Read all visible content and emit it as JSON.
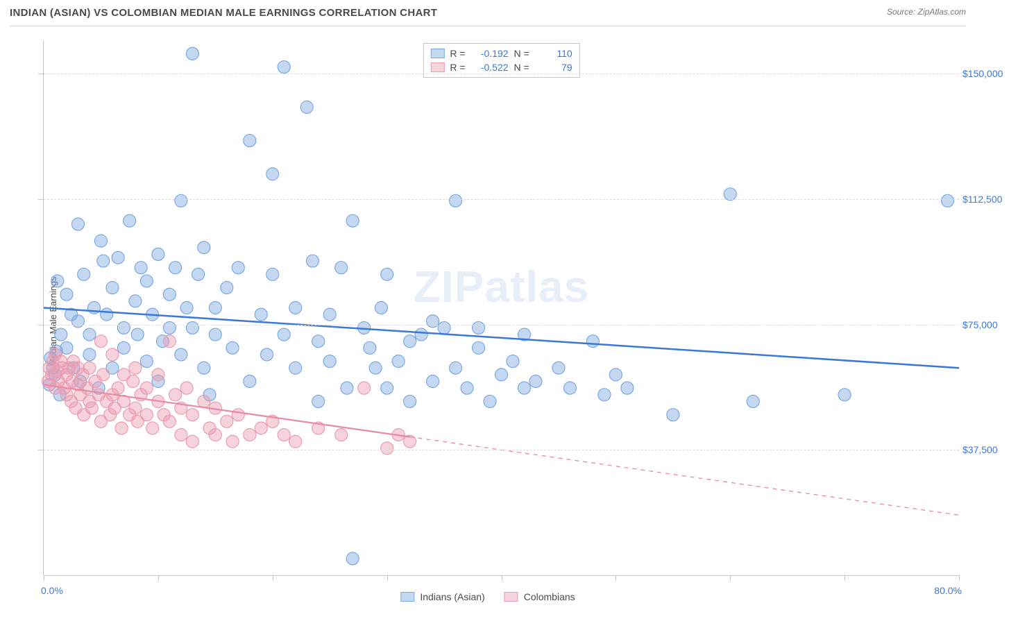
{
  "title": "INDIAN (ASIAN) VS COLOMBIAN MEDIAN MALE EARNINGS CORRELATION CHART",
  "source": "Source: ZipAtlas.com",
  "watermark": "ZIPatlas",
  "ylabel": "Median Male Earnings",
  "chart": {
    "type": "scatter",
    "background_color": "#ffffff",
    "grid_color": "#dcdcdc",
    "axis_color": "#c6c6c6",
    "text_color": "#4a4a4a",
    "value_color": "#3b78d8",
    "x": {
      "min": 0.0,
      "max": 80.0,
      "min_label": "0.0%",
      "max_label": "80.0%",
      "tick_step": 10.0
    },
    "y": {
      "min": 0,
      "max": 160000,
      "gridlines": [
        37500,
        75000,
        112500,
        150000
      ],
      "tick_labels": [
        "$37,500",
        "$75,000",
        "$112,500",
        "$150,000"
      ]
    },
    "series": [
      {
        "name": "Indians (Asian)",
        "marker_color_fill": "rgba(124,169,227,0.45)",
        "marker_color_stroke": "#7ca9e3",
        "marker_radius": 9,
        "line_color": "#3b78d8",
        "line_width": 2.5,
        "R": -0.192,
        "N": 110,
        "trend": {
          "x1": 0,
          "y1": 80000,
          "x2": 80,
          "y2": 62000,
          "solid_until_x": 80
        },
        "points": [
          [
            0.5,
            57000
          ],
          [
            0.6,
            65000
          ],
          [
            0.8,
            62000
          ],
          [
            1.0,
            60000
          ],
          [
            1.1,
            67000
          ],
          [
            1.2,
            88000
          ],
          [
            1.4,
            54000
          ],
          [
            1.5,
            72000
          ],
          [
            2.0,
            68000
          ],
          [
            2.0,
            84000
          ],
          [
            2.4,
            78000
          ],
          [
            2.6,
            62000
          ],
          [
            3.0,
            76000
          ],
          [
            3.0,
            105000
          ],
          [
            3.2,
            58000
          ],
          [
            3.5,
            90000
          ],
          [
            4.0,
            72000
          ],
          [
            4.0,
            66000
          ],
          [
            4.4,
            80000
          ],
          [
            4.8,
            56000
          ],
          [
            5.0,
            100000
          ],
          [
            5.2,
            94000
          ],
          [
            5.5,
            78000
          ],
          [
            6.0,
            86000
          ],
          [
            6.0,
            62000
          ],
          [
            6.5,
            95000
          ],
          [
            7.0,
            74000
          ],
          [
            7.0,
            68000
          ],
          [
            7.5,
            106000
          ],
          [
            8.0,
            82000
          ],
          [
            8.2,
            72000
          ],
          [
            8.5,
            92000
          ],
          [
            9.0,
            64000
          ],
          [
            9.0,
            88000
          ],
          [
            9.5,
            78000
          ],
          [
            10.0,
            96000
          ],
          [
            10.0,
            58000
          ],
          [
            10.4,
            70000
          ],
          [
            11.0,
            84000
          ],
          [
            11.0,
            74000
          ],
          [
            11.5,
            92000
          ],
          [
            12.0,
            112000
          ],
          [
            12.0,
            66000
          ],
          [
            12.5,
            80000
          ],
          [
            13.0,
            156000
          ],
          [
            13.0,
            74000
          ],
          [
            13.5,
            90000
          ],
          [
            14.0,
            62000
          ],
          [
            14.0,
            98000
          ],
          [
            14.5,
            54000
          ],
          [
            15.0,
            72000
          ],
          [
            15.0,
            80000
          ],
          [
            16.0,
            86000
          ],
          [
            16.5,
            68000
          ],
          [
            17.0,
            92000
          ],
          [
            18.0,
            58000
          ],
          [
            18.0,
            130000
          ],
          [
            19.0,
            78000
          ],
          [
            19.5,
            66000
          ],
          [
            20.0,
            90000
          ],
          [
            20.0,
            120000
          ],
          [
            21.0,
            152000
          ],
          [
            21.0,
            72000
          ],
          [
            22.0,
            62000
          ],
          [
            22.0,
            80000
          ],
          [
            23.0,
            140000
          ],
          [
            23.5,
            94000
          ],
          [
            24.0,
            52000
          ],
          [
            24.0,
            70000
          ],
          [
            25.0,
            78000
          ],
          [
            25.0,
            64000
          ],
          [
            26.0,
            92000
          ],
          [
            26.5,
            56000
          ],
          [
            27.0,
            5000
          ],
          [
            27.0,
            106000
          ],
          [
            28.0,
            74000
          ],
          [
            28.5,
            68000
          ],
          [
            29.0,
            62000
          ],
          [
            29.5,
            80000
          ],
          [
            30.0,
            56000
          ],
          [
            30.0,
            90000
          ],
          [
            31.0,
            64000
          ],
          [
            32.0,
            70000
          ],
          [
            32.0,
            52000
          ],
          [
            33.0,
            72000
          ],
          [
            34.0,
            58000
          ],
          [
            34.0,
            76000
          ],
          [
            35.0,
            74000
          ],
          [
            36.0,
            112000
          ],
          [
            36.0,
            62000
          ],
          [
            37.0,
            56000
          ],
          [
            38.0,
            68000
          ],
          [
            38.0,
            74000
          ],
          [
            39.0,
            52000
          ],
          [
            40.0,
            60000
          ],
          [
            41.0,
            64000
          ],
          [
            42.0,
            56000
          ],
          [
            42.0,
            72000
          ],
          [
            43.0,
            58000
          ],
          [
            45.0,
            62000
          ],
          [
            46.0,
            56000
          ],
          [
            48.0,
            70000
          ],
          [
            49.0,
            54000
          ],
          [
            50.0,
            60000
          ],
          [
            51.0,
            56000
          ],
          [
            55.0,
            48000
          ],
          [
            60.0,
            114000
          ],
          [
            62.0,
            52000
          ],
          [
            70.0,
            54000
          ],
          [
            79.0,
            112000
          ]
        ]
      },
      {
        "name": "Colombians",
        "marker_color_fill": "rgba(236,155,176,0.45)",
        "marker_color_stroke": "#ec9bb0",
        "marker_radius": 9,
        "line_color": "#e88aa4",
        "line_width": 2.2,
        "R": -0.522,
        "N": 79,
        "trend": {
          "x1": 0,
          "y1": 57000,
          "x2": 80,
          "y2": 18000,
          "solid_until_x": 32
        },
        "points": [
          [
            0.4,
            58000
          ],
          [
            0.5,
            62000
          ],
          [
            0.7,
            60000
          ],
          [
            0.8,
            64000
          ],
          [
            1.0,
            56000
          ],
          [
            1.0,
            66000
          ],
          [
            1.2,
            61000
          ],
          [
            1.3,
            58000
          ],
          [
            1.5,
            64000
          ],
          [
            1.6,
            62000
          ],
          [
            1.8,
            56000
          ],
          [
            2.0,
            60000
          ],
          [
            2.0,
            54000
          ],
          [
            2.2,
            62000
          ],
          [
            2.4,
            52000
          ],
          [
            2.5,
            58000
          ],
          [
            2.6,
            64000
          ],
          [
            2.8,
            50000
          ],
          [
            3.0,
            57000
          ],
          [
            3.0,
            62000
          ],
          [
            3.2,
            54000
          ],
          [
            3.4,
            60000
          ],
          [
            3.5,
            48000
          ],
          [
            3.8,
            56000
          ],
          [
            4.0,
            52000
          ],
          [
            4.0,
            62000
          ],
          [
            4.2,
            50000
          ],
          [
            4.5,
            58000
          ],
          [
            4.8,
            54000
          ],
          [
            5.0,
            46000
          ],
          [
            5.0,
            70000
          ],
          [
            5.2,
            60000
          ],
          [
            5.5,
            52000
          ],
          [
            5.8,
            48000
          ],
          [
            6.0,
            66000
          ],
          [
            6.0,
            54000
          ],
          [
            6.2,
            50000
          ],
          [
            6.5,
            56000
          ],
          [
            6.8,
            44000
          ],
          [
            7.0,
            60000
          ],
          [
            7.0,
            52000
          ],
          [
            7.5,
            48000
          ],
          [
            7.8,
            58000
          ],
          [
            8.0,
            62000
          ],
          [
            8.0,
            50000
          ],
          [
            8.2,
            46000
          ],
          [
            8.5,
            54000
          ],
          [
            9.0,
            48000
          ],
          [
            9.0,
            56000
          ],
          [
            9.5,
            44000
          ],
          [
            10.0,
            52000
          ],
          [
            10.0,
            60000
          ],
          [
            10.5,
            48000
          ],
          [
            11.0,
            70000
          ],
          [
            11.0,
            46000
          ],
          [
            11.5,
            54000
          ],
          [
            12.0,
            50000
          ],
          [
            12.0,
            42000
          ],
          [
            12.5,
            56000
          ],
          [
            13.0,
            48000
          ],
          [
            13.0,
            40000
          ],
          [
            14.0,
            52000
          ],
          [
            14.5,
            44000
          ],
          [
            15.0,
            50000
          ],
          [
            15.0,
            42000
          ],
          [
            16.0,
            46000
          ],
          [
            16.5,
            40000
          ],
          [
            17.0,
            48000
          ],
          [
            18.0,
            42000
          ],
          [
            19.0,
            44000
          ],
          [
            20.0,
            46000
          ],
          [
            21.0,
            42000
          ],
          [
            22.0,
            40000
          ],
          [
            24.0,
            44000
          ],
          [
            26.0,
            42000
          ],
          [
            28.0,
            56000
          ],
          [
            30.0,
            38000
          ],
          [
            31.0,
            42000
          ],
          [
            32.0,
            40000
          ]
        ]
      }
    ]
  },
  "legend_top": {
    "rows": [
      {
        "swatch_fill": "rgba(124,169,227,0.45)",
        "swatch_stroke": "#7ca9e3",
        "r_label": "R =",
        "r_val": "-0.192",
        "n_label": "N =",
        "n_val": "110"
      },
      {
        "swatch_fill": "rgba(236,155,176,0.45)",
        "swatch_stroke": "#ec9bb0",
        "r_label": "R =",
        "r_val": "-0.522",
        "n_label": "N =",
        "n_val": "79"
      }
    ]
  },
  "legend_bottom": {
    "items": [
      {
        "swatch_fill": "rgba(124,169,227,0.45)",
        "swatch_stroke": "#7ca9e3",
        "label": "Indians (Asian)"
      },
      {
        "swatch_fill": "rgba(236,155,176,0.45)",
        "swatch_stroke": "#ec9bb0",
        "label": "Colombians"
      }
    ]
  }
}
